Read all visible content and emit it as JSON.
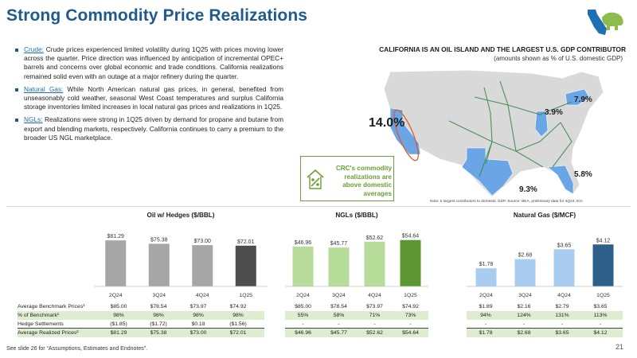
{
  "title": "Strong Commodity Price Realizations",
  "bullets": [
    {
      "lead": "Crude:",
      "text": " Crude prices experienced limited volatility during 1Q25 with prices moving lower across the quarter. Price direction was influenced by anticipation of incremental OPEC+ barrels and concerns over global economic and trade conditions. California realizations remained solid even with an outage at a major refinery during the quarter."
    },
    {
      "lead": "Natural Gas:",
      "text": " While North American natural gas prices, in general, benefited from unseasonably cold weather, seasonal West Coast temperatures and surplus California storage inventories limited increases in local natural gas prices and realizations in 1Q25."
    },
    {
      "lead": "NGLs:",
      "text": " Realizations were strong in 1Q25 driven by demand for propane and butane from export and blending markets, respectively. California continues to carry a premium to the broader US NGL marketplace."
    }
  ],
  "map": {
    "title": "CALIFORNIA IS AN OIL ISLAND AND THE LARGEST U.S. GDP CONTRIBUTOR",
    "subtitle": "(amounts shown as % of U.S. domestic GDP)",
    "labels": {
      "california": "14.0%",
      "illinois": "3.9%",
      "new_york": "7.9%",
      "florida": "5.8%",
      "texas": "9.3%"
    },
    "note": "Note: 5 largest contributors to domestic GDP.  Source: BEA, preliminary data for 4Q24; EIA",
    "highlight_color": "#6aa5e6"
  },
  "callout": {
    "text": "CRC's commodity realizations are above domestic averages"
  },
  "periods": [
    "2Q24",
    "3Q24",
    "4Q24",
    "1Q25"
  ],
  "charts": {
    "oil": {
      "title": "Oil w/ Hedges ($/BBL)",
      "values": [
        81.29,
        75.38,
        73.0,
        72.01
      ],
      "labels": [
        "$81.29",
        "$75.38",
        "$73.00",
        "$72.01"
      ],
      "colors": [
        "#a6a6a6",
        "#a6a6a6",
        "#a6a6a6",
        "#4d4d4d"
      ]
    },
    "ngl": {
      "title": "NGLs ($/BBL)",
      "values": [
        46.96,
        45.77,
        52.62,
        54.64
      ],
      "labels": [
        "$46.96",
        "$45.77",
        "$52.62",
        "$54.64"
      ],
      "colors": [
        "#b7dc9a",
        "#b7dc9a",
        "#b7dc9a",
        "#5d9734"
      ]
    },
    "gas": {
      "title": "Natural Gas ($/MCF)",
      "values": [
        1.78,
        2.68,
        3.65,
        4.12
      ],
      "labels": [
        "$1.78",
        "$2.68",
        "$3.65",
        "$4.12"
      ],
      "colors": [
        "#a8cdf0",
        "#a8cdf0",
        "#a8cdf0",
        "#2e5f8a"
      ]
    }
  },
  "table": {
    "row_labels": [
      "Average Benchmark Prices¹",
      "% of Benchmark¹",
      "Hedge Settlements",
      "Average Realized Prices²"
    ],
    "oil": [
      [
        "$85.00",
        "$78.54",
        "$73.97",
        "$74.92"
      ],
      [
        "98%",
        "98%",
        "98%",
        "98%"
      ],
      [
        "($1.85)",
        "($1.72)",
        "$0.18",
        "($1.56)"
      ],
      [
        "$81.29",
        "$75.38",
        "$73.00",
        "$72.01"
      ]
    ],
    "ngl": [
      [
        "$85.00",
        "$78.54",
        "$73.97",
        "$74.92"
      ],
      [
        "55%",
        "58%",
        "71%",
        "73%"
      ],
      [
        "-",
        "-",
        "-",
        "-"
      ],
      [
        "$46.96",
        "$45.77",
        "$52.62",
        "$54.64"
      ]
    ],
    "gas": [
      [
        "$1.89",
        "$2.16",
        "$2.79",
        "$3.65"
      ],
      [
        "94%",
        "124%",
        "131%",
        "113%"
      ],
      [
        "-",
        "-",
        "-",
        "-"
      ],
      [
        "$1.78",
        "$2.68",
        "$3.65",
        "$4.12"
      ]
    ]
  },
  "footnote": "See slide 26 for “Assumptions, Estimates and Endnotes”.",
  "page_number": "21"
}
